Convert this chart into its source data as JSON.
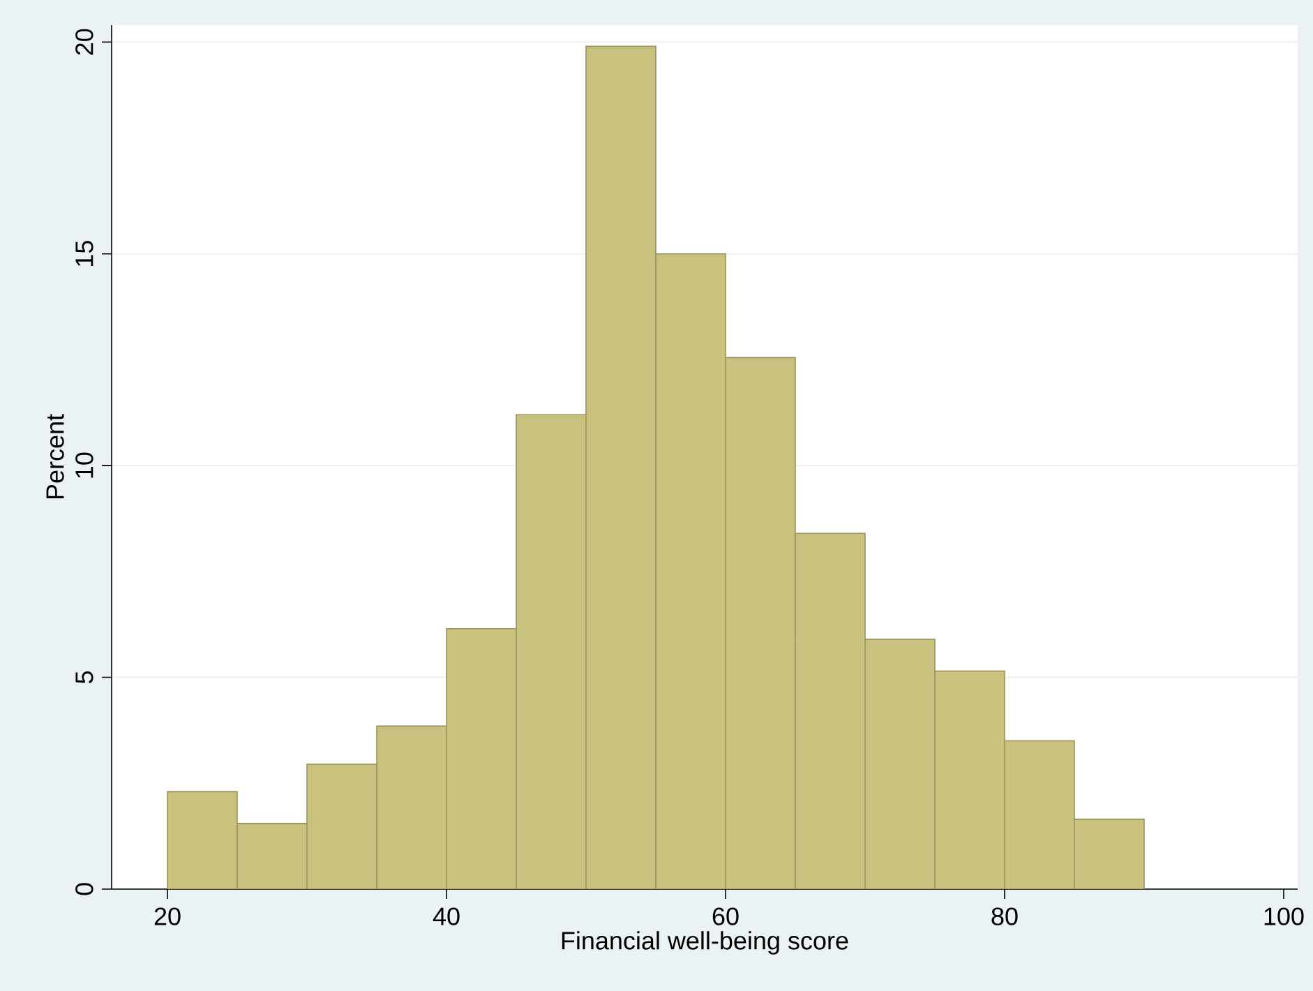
{
  "chart_data": {
    "type": "histogram",
    "xlabel": "Financial well-being score",
    "ylabel": "Percent",
    "bins": [
      20,
      25,
      30,
      35,
      40,
      45,
      50,
      55,
      60,
      65,
      70,
      75,
      80,
      85,
      90
    ],
    "values": [
      2.3,
      1.55,
      2.95,
      3.85,
      6.15,
      11.2,
      19.9,
      15.0,
      12.55,
      8.4,
      5.9,
      5.15,
      3.5,
      1.65
    ],
    "color": "#c9c27f",
    "xlim": [
      16,
      101
    ],
    "ylim": [
      0,
      20.4
    ],
    "xticks": [
      20,
      40,
      60,
      80,
      100
    ],
    "yticks": [
      0,
      5,
      10,
      15,
      20
    ],
    "grid": "y"
  }
}
